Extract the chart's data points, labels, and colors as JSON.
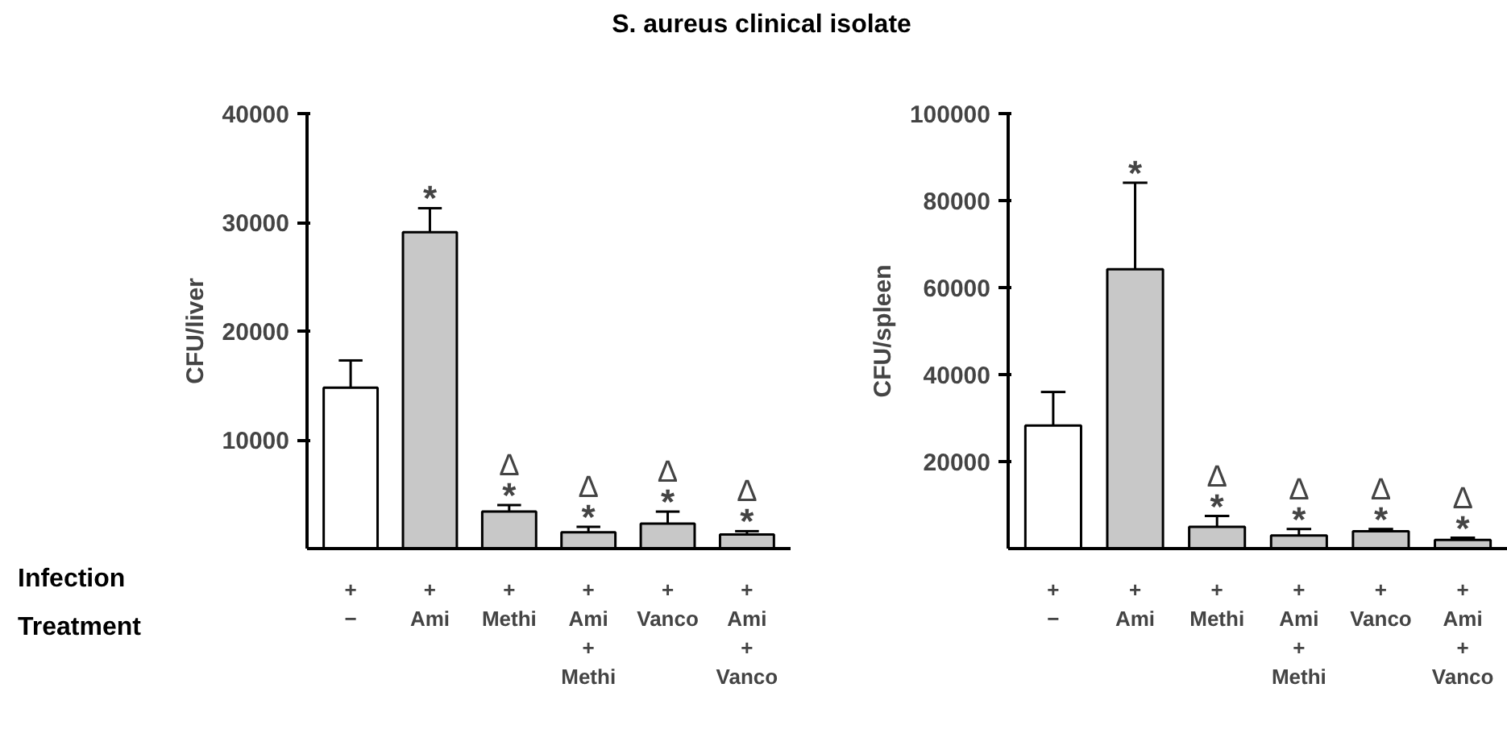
{
  "chart_data": [
    {
      "type": "bar",
      "title": "S. aureus clinical isolate",
      "ylabel": "CFU/liver",
      "categories": [
        "+\n−",
        "+\nAmi",
        "+\nMethi",
        "+\nAmi\n+\nMethi",
        "+\nVanco",
        "+\nAmi\n+\nVanco"
      ],
      "values": [
        14800,
        29100,
        3400,
        1500,
        2300,
        1300
      ],
      "errors": [
        [
          14800,
          17300
        ],
        [
          29100,
          31300
        ],
        [
          3400,
          4000
        ],
        [
          1500,
          2000
        ],
        [
          2300,
          3400
        ],
        [
          1300,
          1600
        ]
      ],
      "colors": [
        "#ffffff",
        "#c8c8c8",
        "#c8c8c8",
        "#c8c8c8",
        "#c8c8c8",
        "#c8c8c8"
      ],
      "ylim": [
        0,
        40000
      ],
      "yticks": [
        10000,
        20000,
        30000,
        40000
      ],
      "grid": false,
      "annotations": [
        "Infection",
        "Treatment",
        {
          "text": "*",
          "x": "+\nAmi",
          "y": 31300
        },
        {
          "text": "*",
          "x": "+\nMethi",
          "y": 4000
        },
        {
          "text": "Δ",
          "x": "+\nMethi",
          "y": 4000
        },
        {
          "text": "*",
          "x": "+\nAmi\n+\nMethi",
          "y": 2000
        },
        {
          "text": "Δ",
          "x": "+\nAmi\n+\nMethi",
          "y": 2000
        },
        {
          "text": "*",
          "x": "+\nVanco",
          "y": 3400
        },
        {
          "text": "Δ",
          "x": "+\nVanco",
          "y": 3400
        },
        {
          "text": "*",
          "x": "+\nAmi\n+\nVanco",
          "y": 1600
        },
        {
          "text": "Δ",
          "x": "+\nAmi\n+\nVanco",
          "y": 1600
        }
      ]
    },
    {
      "type": "bar",
      "ylabel": "CFU/spleen",
      "categories": [
        "+\n−",
        "+\nAmi",
        "+\nMethi",
        "+\nAmi\n+\nMethi",
        "+\nVanco",
        "+\nAmi\n+\nVanco"
      ],
      "values": [
        28300,
        64200,
        5000,
        3000,
        4000,
        2000
      ],
      "errors": [
        [
          28300,
          36000
        ],
        [
          64200,
          84100
        ],
        [
          5000,
          7500
        ],
        [
          3000,
          4500
        ],
        [
          4000,
          4500
        ],
        [
          2000,
          2500
        ]
      ],
      "colors": [
        "#ffffff",
        "#c8c8c8",
        "#c8c8c8",
        "#c8c8c8",
        "#c8c8c8",
        "#c8c8c8"
      ],
      "ylim": [
        0,
        100000
      ],
      "yticks": [
        20000,
        40000,
        60000,
        80000,
        100000
      ],
      "grid": false,
      "annotations": [
        {
          "text": "*",
          "x": "+\nAmi",
          "y": 84100
        },
        {
          "text": "*",
          "x": "+\nMethi",
          "y": 7500
        },
        {
          "text": "Δ",
          "x": "+\nMethi",
          "y": 7500
        },
        {
          "text": "*",
          "x": "+\nAmi\n+\nMethi",
          "y": 4500
        },
        {
          "text": "Δ",
          "x": "+\nAmi\n+\nMethi",
          "y": 4500
        },
        {
          "text": "*",
          "x": "+\nVanco",
          "y": 4500
        },
        {
          "text": "Δ",
          "x": "+\nVanco",
          "y": 4500
        },
        {
          "text": "*",
          "x": "+\nAmi\n+\nVanco",
          "y": 2500
        },
        {
          "text": "Δ",
          "x": "+\nAmi\n+\nVanco",
          "y": 2500
        }
      ]
    }
  ]
}
